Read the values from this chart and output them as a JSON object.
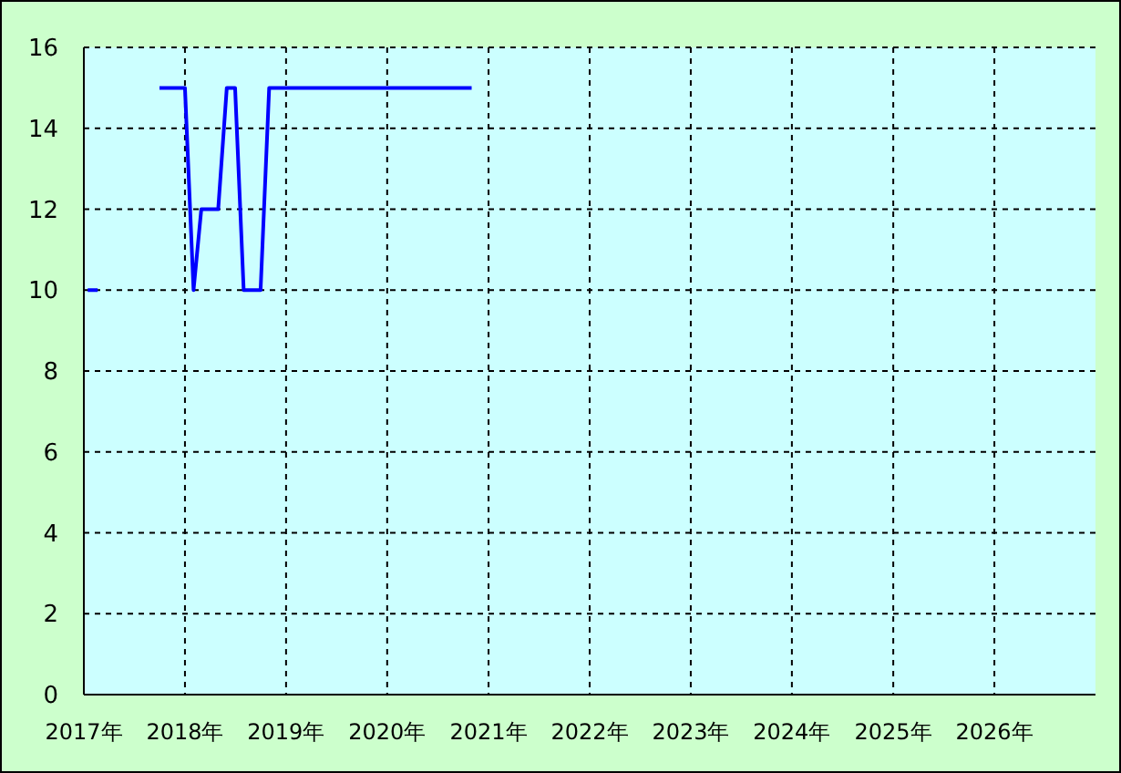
{
  "chart_data": {
    "type": "line",
    "x": [
      "2017-01-15",
      "2017-02-20",
      "2017-03",
      "2017-10",
      "2017-11",
      "2017-12",
      "2018-01",
      "2018-02",
      "2018-03",
      "2018-04",
      "2018-05",
      "2018-06",
      "2018-07",
      "2018-08",
      "2018-09",
      "2018-10",
      "2018-11",
      "2018-12",
      "2019-01",
      "2019-02",
      "2019-03",
      "2019-04",
      "2019-05",
      "2019-06",
      "2019-07",
      "2019-08",
      "2019-09",
      "2019-10",
      "2019-11",
      "2019-12",
      "2020-01",
      "2020-02",
      "2020-03",
      "2020-04",
      "2020-05",
      "2020-06",
      "2020-07",
      "2020-08",
      "2020-09",
      "2020-10",
      "2020-11"
    ],
    "series": [
      {
        "color": "#0000ff",
        "values": [
          10,
          10,
          null,
          15,
          15,
          15,
          15,
          10,
          12,
          12,
          12,
          15,
          15,
          10,
          10,
          10,
          15,
          15,
          15,
          15,
          15,
          15,
          15,
          15,
          15,
          15,
          15,
          15,
          15,
          15,
          15,
          15,
          15,
          15,
          15,
          15,
          15,
          15,
          15,
          15,
          15
        ]
      }
    ],
    "xlim": [
      "2017",
      "2027"
    ],
    "xticks": [
      {
        "value": "2017",
        "label": "2017年"
      },
      {
        "value": "2018",
        "label": "2018年"
      },
      {
        "value": "2019",
        "label": "2019年"
      },
      {
        "value": "2020",
        "label": "2020年"
      },
      {
        "value": "2021",
        "label": "2021年"
      },
      {
        "value": "2022",
        "label": "2022年"
      },
      {
        "value": "2023",
        "label": "2023年"
      },
      {
        "value": "2024",
        "label": "2024年"
      },
      {
        "value": "2025",
        "label": "2025年"
      },
      {
        "value": "2026",
        "label": "2026年"
      }
    ],
    "ylim": [
      0,
      16
    ],
    "yticks": [
      0,
      2,
      4,
      6,
      8,
      10,
      12,
      14,
      16
    ],
    "grid": true,
    "marker": "none",
    "line_style": "solid",
    "legend": false
  }
}
